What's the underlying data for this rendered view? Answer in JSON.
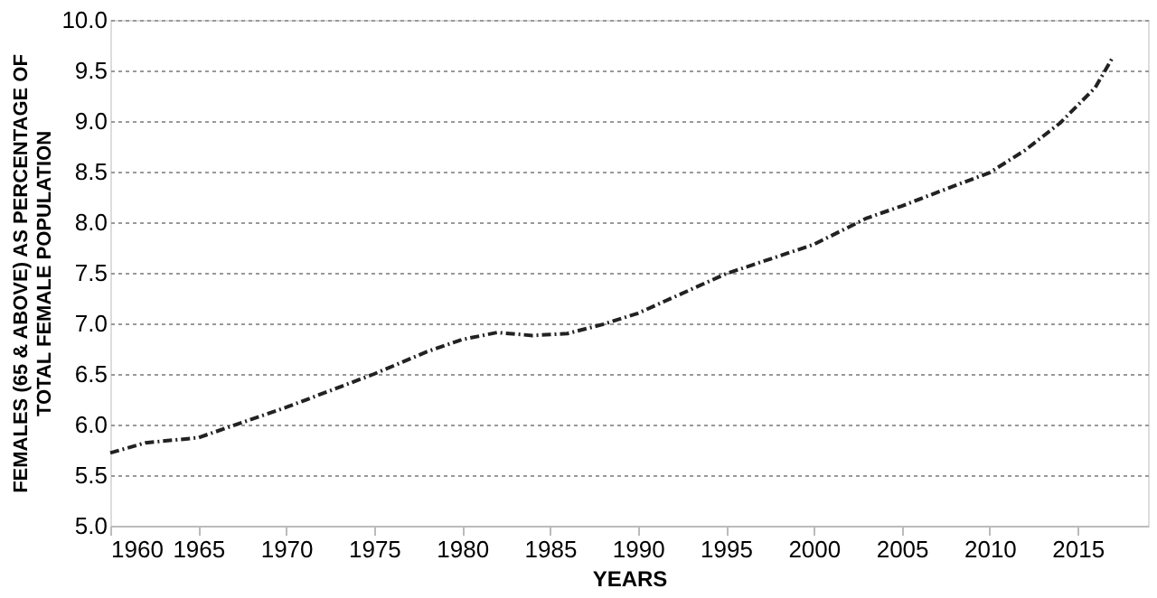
{
  "chart_data": {
    "type": "line",
    "xlabel": "YEARS",
    "ylabel": "FEMALES (65 & ABOVE) AS PERCENTAGE OF TOTAL FEMALE POPULATION",
    "x": [
      1960,
      1962,
      1965,
      1970,
      1975,
      1978,
      1980,
      1982,
      1984,
      1986,
      1988,
      1990,
      1995,
      2000,
      2003,
      2005,
      2008,
      2010,
      2012,
      2014,
      2016,
      2017
    ],
    "series": [
      {
        "color": "#222222",
        "values": [
          5.72,
          5.82,
          5.87,
          6.17,
          6.5,
          6.72,
          6.84,
          6.91,
          6.88,
          6.9,
          6.99,
          7.1,
          7.49,
          7.78,
          8.04,
          8.16,
          8.36,
          8.49,
          8.71,
          8.98,
          9.33,
          9.63
        ]
      }
    ],
    "xlim": [
      1960,
      2019
    ],
    "xticks": [
      1960,
      1965,
      1970,
      1975,
      1980,
      1985,
      1990,
      1995,
      2000,
      2005,
      2010,
      2015
    ],
    "ylim": [
      5.0,
      10.0
    ],
    "yticks": [
      {
        "value": 5.0,
        "label": "5.0"
      },
      {
        "value": 5.5,
        "label": "5.5"
      },
      {
        "value": 6.0,
        "label": "6.0"
      },
      {
        "value": 6.5,
        "label": "6.5"
      },
      {
        "value": 7.0,
        "label": "7.0"
      },
      {
        "value": 7.5,
        "label": "7.5"
      },
      {
        "value": 8.0,
        "label": "8.0"
      },
      {
        "value": 8.5,
        "label": "8.5"
      },
      {
        "value": 9.0,
        "label": "9.0"
      },
      {
        "value": 9.5,
        "label": "9.5"
      },
      {
        "value": 10.0,
        "label": "10.0"
      }
    ],
    "grid": "y",
    "line_style": "dashed",
    "marker": "none"
  }
}
